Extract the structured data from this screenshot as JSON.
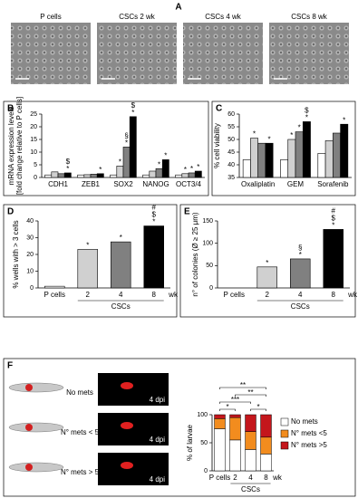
{
  "panel_labels": [
    "A",
    "B",
    "C",
    "D",
    "E",
    "F"
  ],
  "panel_a": {
    "images": [
      "P cells",
      "CSCs 2 wk",
      "CSCs 4 wk",
      "CSCs 8 wk"
    ]
  },
  "panel_f_images": {
    "rows": [
      {
        "label": "No mets",
        "dpi": "4 dpi"
      },
      {
        "label": "N° mets < 5",
        "dpi": "4 dpi"
      },
      {
        "label": "N° mets > 5",
        "dpi": "4 dpi"
      }
    ]
  },
  "chart_data": [
    {
      "type": "bar",
      "ylabel": [
        "mRNA expression levels",
        "[fold change relative to P cells]"
      ],
      "categories": [
        "CDH1",
        "ZEB1",
        "SOX2",
        "NANOG",
        "OCT3/4"
      ],
      "series": [
        {
          "color": "#ffffff",
          "values": [
            1,
            1,
            1,
            1,
            1
          ],
          "significance": [
            null,
            null,
            null,
            null,
            null
          ]
        },
        {
          "color": "#d0d0d0",
          "values": [
            2.2,
            1.1,
            4.5,
            2.5,
            1.5
          ],
          "significance": [
            null,
            null,
            [
              "*"
            ],
            null,
            [
              "*"
            ]
          ]
        },
        {
          "color": "#808080",
          "values": [
            1.5,
            1.3,
            12,
            3.5,
            1.8
          ],
          "significance": [
            null,
            null,
            [
              "§",
              "*"
            ],
            [
              "*"
            ],
            [
              "*"
            ]
          ]
        },
        {
          "color": "#000000",
          "values": [
            1.8,
            1.5,
            24,
            7,
            2.5
          ],
          "significance": [
            [
              "$",
              "*"
            ],
            [
              "*"
            ],
            [
              "$",
              "*"
            ],
            [
              "*"
            ],
            [
              "*"
            ]
          ]
        }
      ],
      "ylim": [
        0,
        25
      ],
      "yticks": [
        0,
        5,
        10,
        15,
        20,
        25
      ]
    },
    {
      "type": "bar",
      "ylabel": [
        "% cell viability"
      ],
      "categories": [
        "Oxaliplatin",
        "GEM",
        "Sorafenib"
      ],
      "series": [
        {
          "color": "#ffffff",
          "values": [
            42,
            42,
            44.5
          ],
          "significance": [
            null,
            null,
            null
          ]
        },
        {
          "color": "#d0d0d0",
          "values": [
            50.5,
            50,
            49.5
          ],
          "significance": [
            [
              "*"
            ],
            [
              "*"
            ],
            null
          ]
        },
        {
          "color": "#808080",
          "values": [
            48.5,
            53,
            52.5
          ],
          "significance": [
            null,
            [
              "*"
            ],
            null
          ]
        },
        {
          "color": "#000000",
          "values": [
            48.5,
            57,
            56
          ],
          "significance": [
            [
              "*"
            ],
            [
              "$",
              "*"
            ],
            [
              "*"
            ]
          ]
        }
      ],
      "ylim": [
        35,
        60
      ],
      "yticks": [
        35,
        40,
        45,
        50,
        55,
        60
      ]
    },
    {
      "type": "bar",
      "ylabel": [
        "% wells with > 3 cells"
      ],
      "categories": [
        "P cells",
        "2",
        "4",
        "8"
      ],
      "group_label": "CSCs",
      "unit": "wk",
      "values": [
        1,
        23,
        27.5,
        37
      ],
      "colors": [
        "#ffffff",
        "#d0d0d0",
        "#808080",
        "#000000"
      ],
      "significance": [
        null,
        [
          "*"
        ],
        [
          "*"
        ],
        [
          "#",
          "$",
          "*"
        ]
      ],
      "ylim": [
        0,
        40
      ],
      "yticks": [
        0,
        10,
        20,
        30,
        40
      ]
    },
    {
      "type": "bar",
      "ylabel": [
        "n° of colonies (Ø ≥ 25 μm)"
      ],
      "categories": [
        "P cells",
        "2",
        "4",
        "8"
      ],
      "group_label": "CSCs",
      "unit": "wk",
      "values": [
        0,
        47,
        65,
        131
      ],
      "colors": [
        "#ffffff",
        "#d0d0d0",
        "#808080",
        "#000000"
      ],
      "significance": [
        null,
        [
          "*"
        ],
        [
          "§",
          "*"
        ],
        [
          "#",
          "$",
          "*"
        ]
      ],
      "ylim": [
        0,
        150
      ],
      "yticks": [
        0,
        50,
        100,
        150
      ]
    },
    {
      "type": "stacked_bar",
      "ylabel": [
        "% of larvae"
      ],
      "categories": [
        "P cells",
        "2",
        "4",
        "8"
      ],
      "group_label": "CSCs",
      "unit": "wk",
      "series": [
        {
          "name": "No mets",
          "color": "#ffffff",
          "values": [
            75,
            55,
            38,
            30
          ]
        },
        {
          "name": "N° mets <5",
          "color": "#f28c1e",
          "values": [
            18,
            40,
            32,
            30
          ]
        },
        {
          "name": "N° mets >5",
          "color": "#c4161c",
          "values": [
            7,
            5,
            30,
            40
          ]
        }
      ],
      "comparisons": [
        {
          "pair": [
            0,
            1
          ],
          "label": "*"
        },
        {
          "pair": [
            2,
            3
          ],
          "label": "*"
        },
        {
          "pair": [
            0,
            2
          ],
          "label": "***"
        },
        {
          "pair": [
            1,
            3
          ],
          "label": "**"
        },
        {
          "pair": [
            0,
            3
          ],
          "label": "**"
        }
      ],
      "ylim": [
        0,
        100
      ],
      "yticks": [
        0,
        50,
        100
      ]
    }
  ]
}
